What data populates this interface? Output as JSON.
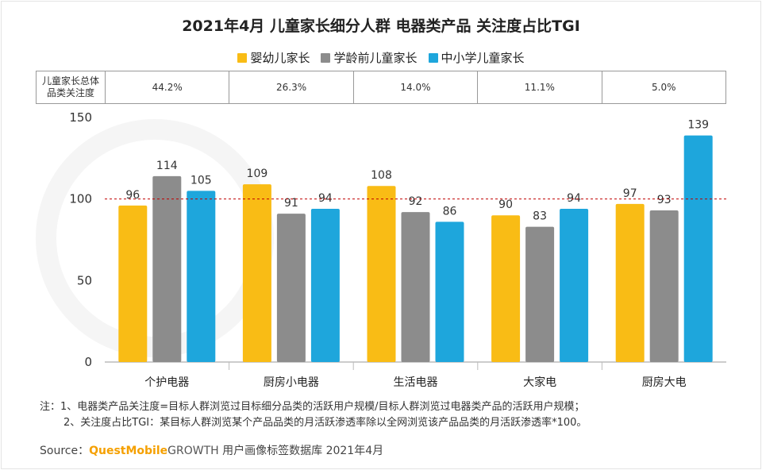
{
  "title": "2021年4月 儿童家长细分人群 电器类产品 关注度占比TGI",
  "legend": [
    {
      "label": "婴幼儿家长",
      "color": "#f9bc15"
    },
    {
      "label": "学龄前儿童家长",
      "color": "#8c8c8c"
    },
    {
      "label": "中小学儿童家长",
      "color": "#1ea6dc"
    }
  ],
  "share_row": {
    "label_line1": "儿童家长总体",
    "label_line2": "品类关注度",
    "values": [
      "44.2%",
      "26.3%",
      "14.0%",
      "11.1%",
      "5.0%"
    ]
  },
  "chart_data": {
    "type": "bar",
    "title": "2021年4月 儿童家长细分人群 电器类产品 关注度占比TGI",
    "categories": [
      "个护电器",
      "厨房小电器",
      "生活电器",
      "大家电",
      "厨房大电"
    ],
    "series": [
      {
        "name": "婴幼儿家长",
        "values": [
          96,
          109,
          108,
          90,
          97
        ],
        "color": "#f9bc15"
      },
      {
        "name": "学龄前儿童家长",
        "values": [
          114,
          91,
          92,
          83,
          93
        ],
        "color": "#8c8c8c"
      },
      {
        "name": "中小学儿童家长",
        "values": [
          105,
          94,
          86,
          94,
          139
        ],
        "color": "#1ea6dc"
      }
    ],
    "yticks": [
      0,
      50,
      100,
      150
    ],
    "ylim": [
      0,
      150
    ],
    "reference_line": 100,
    "reference_color": "#c00000",
    "xlabel": "",
    "ylabel": "",
    "legend_position": "top-center"
  },
  "notes": {
    "line1": "注：1、电器类产品关注度=目标人群浏览过目标细分品类的活跃用户规模/目标人群浏览过电器类产品的活跃用户规模；",
    "line2": "2、关注度占比TGI：某目标人群浏览某个产品品类的月活跃渗透率除以全网浏览该产品品类的月活跃渗透率*100。"
  },
  "source": {
    "prefix": "Source：",
    "brand": "QuestMobile",
    "growth": "GROWTH",
    "suffix": " 用户画像标签数据库 2021年4月"
  }
}
